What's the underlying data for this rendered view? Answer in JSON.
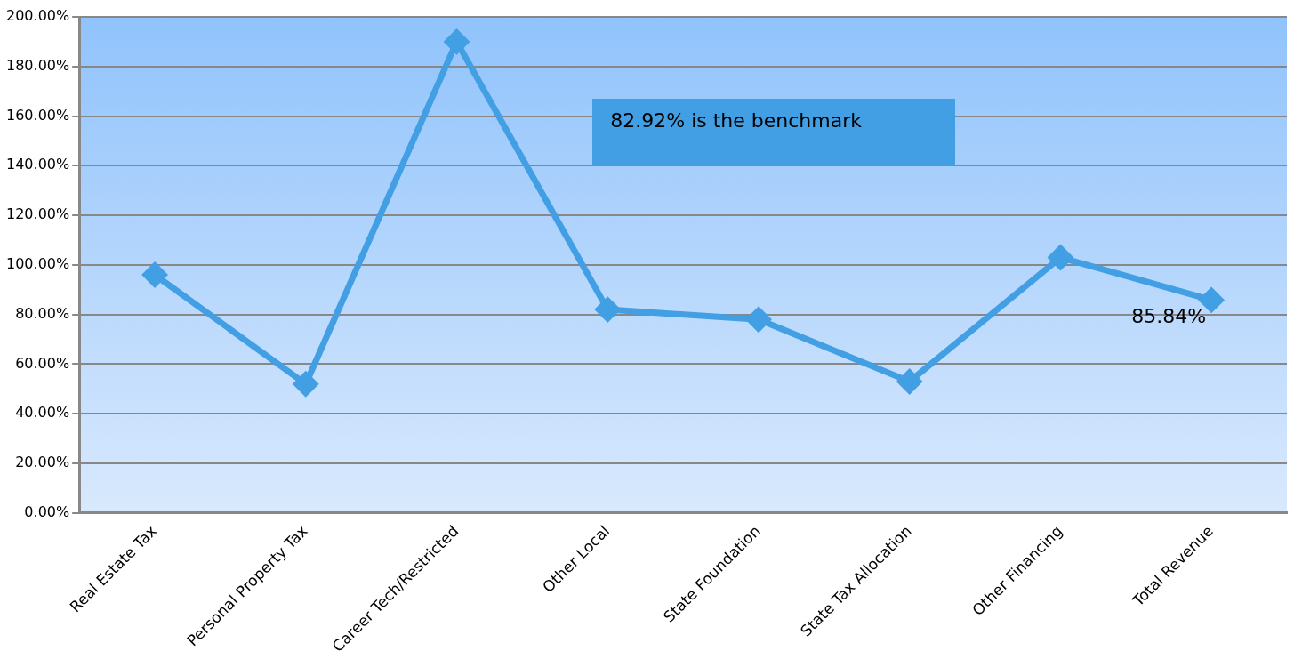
{
  "chart_data": {
    "type": "line",
    "categories": [
      "Real Estate Tax",
      "Personal Property Tax",
      "Career Tech/Restricted",
      "Other Local",
      "State Foundation",
      "State Tax Allocation",
      "Other Financing",
      "Total Revenue"
    ],
    "series": [
      {
        "color": "#429fe3",
        "values": [
          96,
          52,
          190,
          82,
          78,
          53,
          103,
          85.84
        ],
        "value_labels": [
          null,
          null,
          null,
          null,
          null,
          null,
          null,
          "85.84%"
        ]
      }
    ],
    "ylim": [
      0,
      200
    ],
    "yticks": [
      {
        "value": 0,
        "label": "0.00%"
      },
      {
        "value": 20,
        "label": "20.00%"
      },
      {
        "value": 40,
        "label": "40.00%"
      },
      {
        "value": 60,
        "label": "60.00%"
      },
      {
        "value": 80,
        "label": "80.00%"
      },
      {
        "value": 100,
        "label": "100.00%"
      },
      {
        "value": 120,
        "label": "120.00%"
      },
      {
        "value": 140,
        "label": "140.00%"
      },
      {
        "value": 160,
        "label": "160.00%"
      },
      {
        "value": 180,
        "label": "180.00%"
      },
      {
        "value": 200,
        "label": "200.00%"
      }
    ],
    "annotations": [
      "82.92% is the benchmark"
    ],
    "grid": "y",
    "legend": false,
    "marker": "diamond",
    "line_style": "solid"
  }
}
